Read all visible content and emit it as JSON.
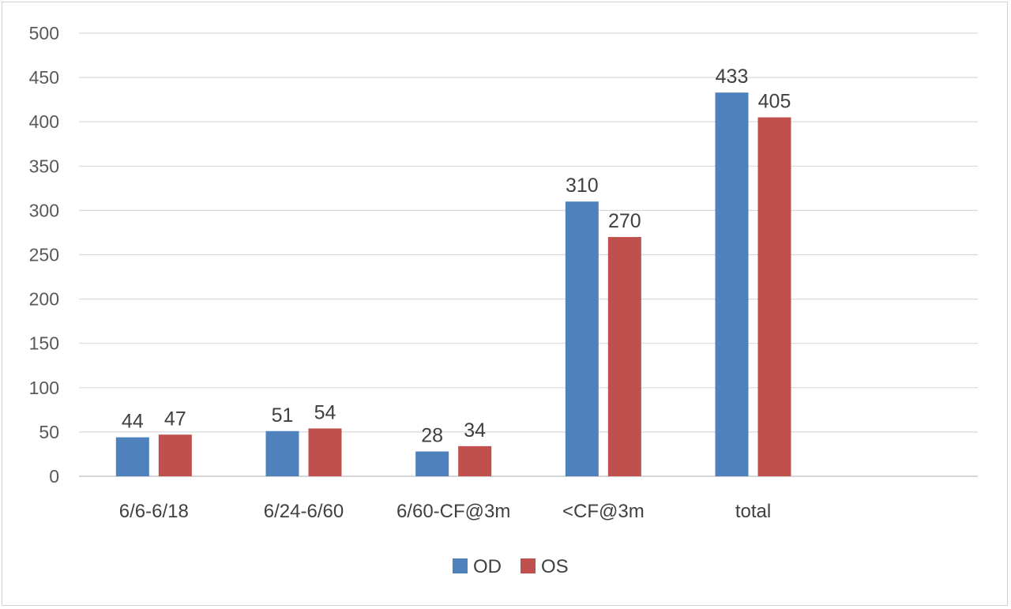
{
  "chart_data": {
    "type": "bar",
    "categories": [
      "6/6-6/18",
      "6/24-6/60",
      "6/60-CF@3m",
      "<CF@3m",
      "total"
    ],
    "series": [
      {
        "name": "OD",
        "values": [
          44,
          51,
          28,
          310,
          433
        ],
        "color": "#4f81bd"
      },
      {
        "name": "OS",
        "values": [
          47,
          54,
          34,
          270,
          405
        ],
        "color": "#c0504d"
      }
    ],
    "title": "",
    "xlabel": "",
    "ylabel": "",
    "ylim": [
      0,
      500
    ],
    "yticks": [
      "0",
      "50",
      "100",
      "150",
      "200",
      "250",
      "300",
      "350",
      "400",
      "450",
      "500"
    ],
    "grid": true,
    "legend_position": "bottom",
    "data_labels": true
  }
}
